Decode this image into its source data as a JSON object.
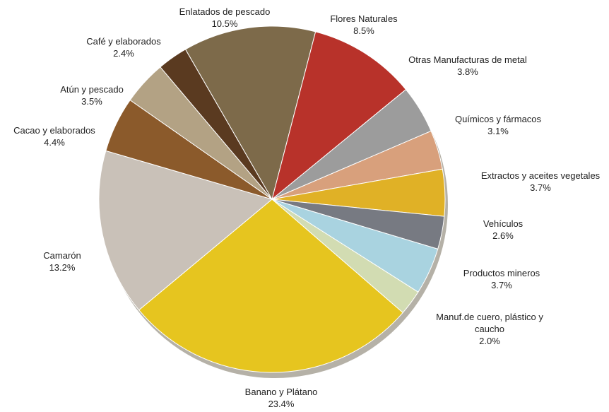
{
  "chart_data": {
    "type": "pie",
    "categories": [
      "Enlatados de pescado",
      "Flores Naturales",
      "Otras Manufacturas de metal",
      "Químicos y fármacos",
      "Extractos y aceites vegetales",
      "Vehículos",
      "Productos mineros",
      "Manuf.de cuero, plástico y caucho",
      "Banano y Plátano",
      "Camarón",
      "Cacao y elaborados",
      "Atún y pescado",
      "Café y elaborados"
    ],
    "values": [
      10.5,
      8.5,
      3.8,
      3.1,
      3.7,
      2.6,
      3.7,
      2.0,
      23.4,
      13.2,
      4.4,
      3.5,
      2.4
    ],
    "value_labels": [
      "10.5%",
      "8.5%",
      "3.8%",
      "3.1%",
      "3.7%",
      "2.6%",
      "3.7%",
      "2.0%",
      "23.4%",
      "13.2%",
      "4.4%",
      "3.5%",
      "2.4%"
    ],
    "colors": [
      "#7d6a4a",
      "#b8322a",
      "#9c9c9c",
      "#d8a07c",
      "#e0b126",
      "#777a82",
      "#a9d3e0",
      "#d2dcb2",
      "#e6c51f",
      "#c9c1b8",
      "#8b5a2b",
      "#b3a284",
      "#5a3a20"
    ]
  }
}
